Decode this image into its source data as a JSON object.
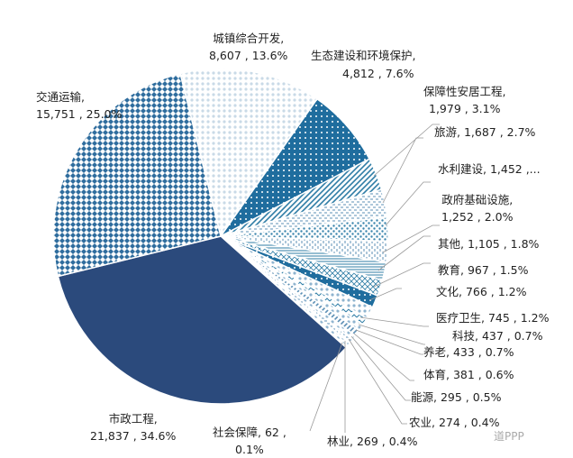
{
  "chart_data": {
    "type": "pie",
    "title": "",
    "start_angle_deg": -14,
    "direction": "clockwise",
    "slices": [
      {
        "label": "城镇综合开发",
        "value": 8607,
        "display": "8,607",
        "percent": "13.6%",
        "fill": "#c9dae7",
        "pattern": "dots"
      },
      {
        "label": "生态建设和环境保护",
        "value": 4812,
        "display": "4,812",
        "percent": "7.6%",
        "fill": "#1f6d9e",
        "pattern": "solid-dots"
      },
      {
        "label": "保障性安居工程",
        "value": 1979,
        "display": "1,979",
        "percent": "3.1%",
        "fill": "#2f7da6",
        "pattern": "diagonal"
      },
      {
        "label": "旅游",
        "value": 1687,
        "display": "1,687",
        "percent": "2.7%",
        "fill": "#5b8fb5",
        "pattern": "dashes"
      },
      {
        "label": "水利建设",
        "value": 1452,
        "display": "1,452",
        "percent": "…",
        "fill": "#3c86ad",
        "pattern": "dense-dots"
      },
      {
        "label": "政府基础设施",
        "value": 1252,
        "display": "1,252",
        "percent": "2.0%",
        "fill": "#5b8fb5",
        "pattern": "vertical-dashes"
      },
      {
        "label": "其他",
        "value": 1105,
        "display": "1,105",
        "percent": "1.8%",
        "fill": "#2f7da6",
        "pattern": "horizontal"
      },
      {
        "label": "教育",
        "value": 967,
        "display": "967",
        "percent": "1.5%",
        "fill": "#2f7da6",
        "pattern": "crosshatch"
      },
      {
        "label": "文化",
        "value": 766,
        "display": "766",
        "percent": "1.2%",
        "fill": "#1f6d9e",
        "pattern": "solid-dots"
      },
      {
        "label": "医疗卫生",
        "value": 745,
        "display": "745",
        "percent": "1.2%",
        "fill": "#8fb4cf",
        "pattern": "dots"
      },
      {
        "label": "科技",
        "value": 437,
        "display": "437",
        "percent": "0.7%",
        "fill": "#2f7da6",
        "pattern": "zigzag"
      },
      {
        "label": "养老",
        "value": 433,
        "display": "433",
        "percent": "0.7%",
        "fill": "#8fb4cf",
        "pattern": "dots"
      },
      {
        "label": "体育",
        "value": 381,
        "display": "381",
        "percent": "0.6%",
        "fill": "#5b8fb5",
        "pattern": "diagonal"
      },
      {
        "label": "能源",
        "value": 295,
        "display": "295",
        "percent": "0.5%",
        "fill": "#8fb4cf",
        "pattern": "dots"
      },
      {
        "label": "农业",
        "value": 274,
        "display": "274",
        "percent": "0.4%",
        "fill": "#5b8fb5",
        "pattern": "dashes"
      },
      {
        "label": "林业",
        "value": 269,
        "display": "269",
        "percent": "0.4%",
        "fill": "#8fb4cf",
        "pattern": "dots"
      },
      {
        "label": "社会保障",
        "value": 62,
        "display": "62",
        "percent": "0.1%",
        "fill": "#2f7da6",
        "pattern": "solid"
      },
      {
        "label": "市政工程",
        "value": 21837,
        "display": "21,837",
        "percent": "34.6%",
        "fill": "#2b4a7c",
        "pattern": "solid"
      },
      {
        "label": "交通运输",
        "value": 15751,
        "display": "15,751",
        "percent": "25.0%",
        "fill": "#2f6d9e",
        "pattern": "checker"
      }
    ]
  },
  "labels": {
    "chengzhen": "城镇综合开发,",
    "chengzhen_v": "8,607 , 13.6%",
    "shengtai": "生态建设和环境保护,",
    "shengtai_v": "4,812 , 7.6%",
    "baozhang": "保障性安居工程,",
    "baozhang_v": "1,979 , 3.1%",
    "lvyou": "旅游, 1,687 , 2.7%",
    "shuili": "水利建设, 1,452 ,...",
    "zhengfu": "政府基础设施,",
    "zhengfu_v": "1,252 , 2.0%",
    "qita": "其他, 1,105 , 1.8%",
    "jiaoyu": "教育, 967 , 1.5%",
    "wenhua": "文化, 766 , 1.2%",
    "yiliao": "医疗卫生, 745 , 1.2%",
    "keji": "科技, 437 , 0.7%",
    "yanglao": "养老, 433 , 0.7%",
    "tiyu": "体育, 381 , 0.6%",
    "nengyuan": "能源, 295 , 0.5%",
    "nongye": "农业, 274 , 0.4%",
    "linye": "林业, 269 , 0.4%",
    "shebao": "社会保障, 62 ,",
    "shebao_v": "0.1%",
    "shizheng": "市政工程,",
    "shizheng_v": "21,837 , 34.6%",
    "jiaotong": "交通运输,",
    "jiaotong_v": "15,751 , 25.0%"
  },
  "watermark": "道PPP"
}
